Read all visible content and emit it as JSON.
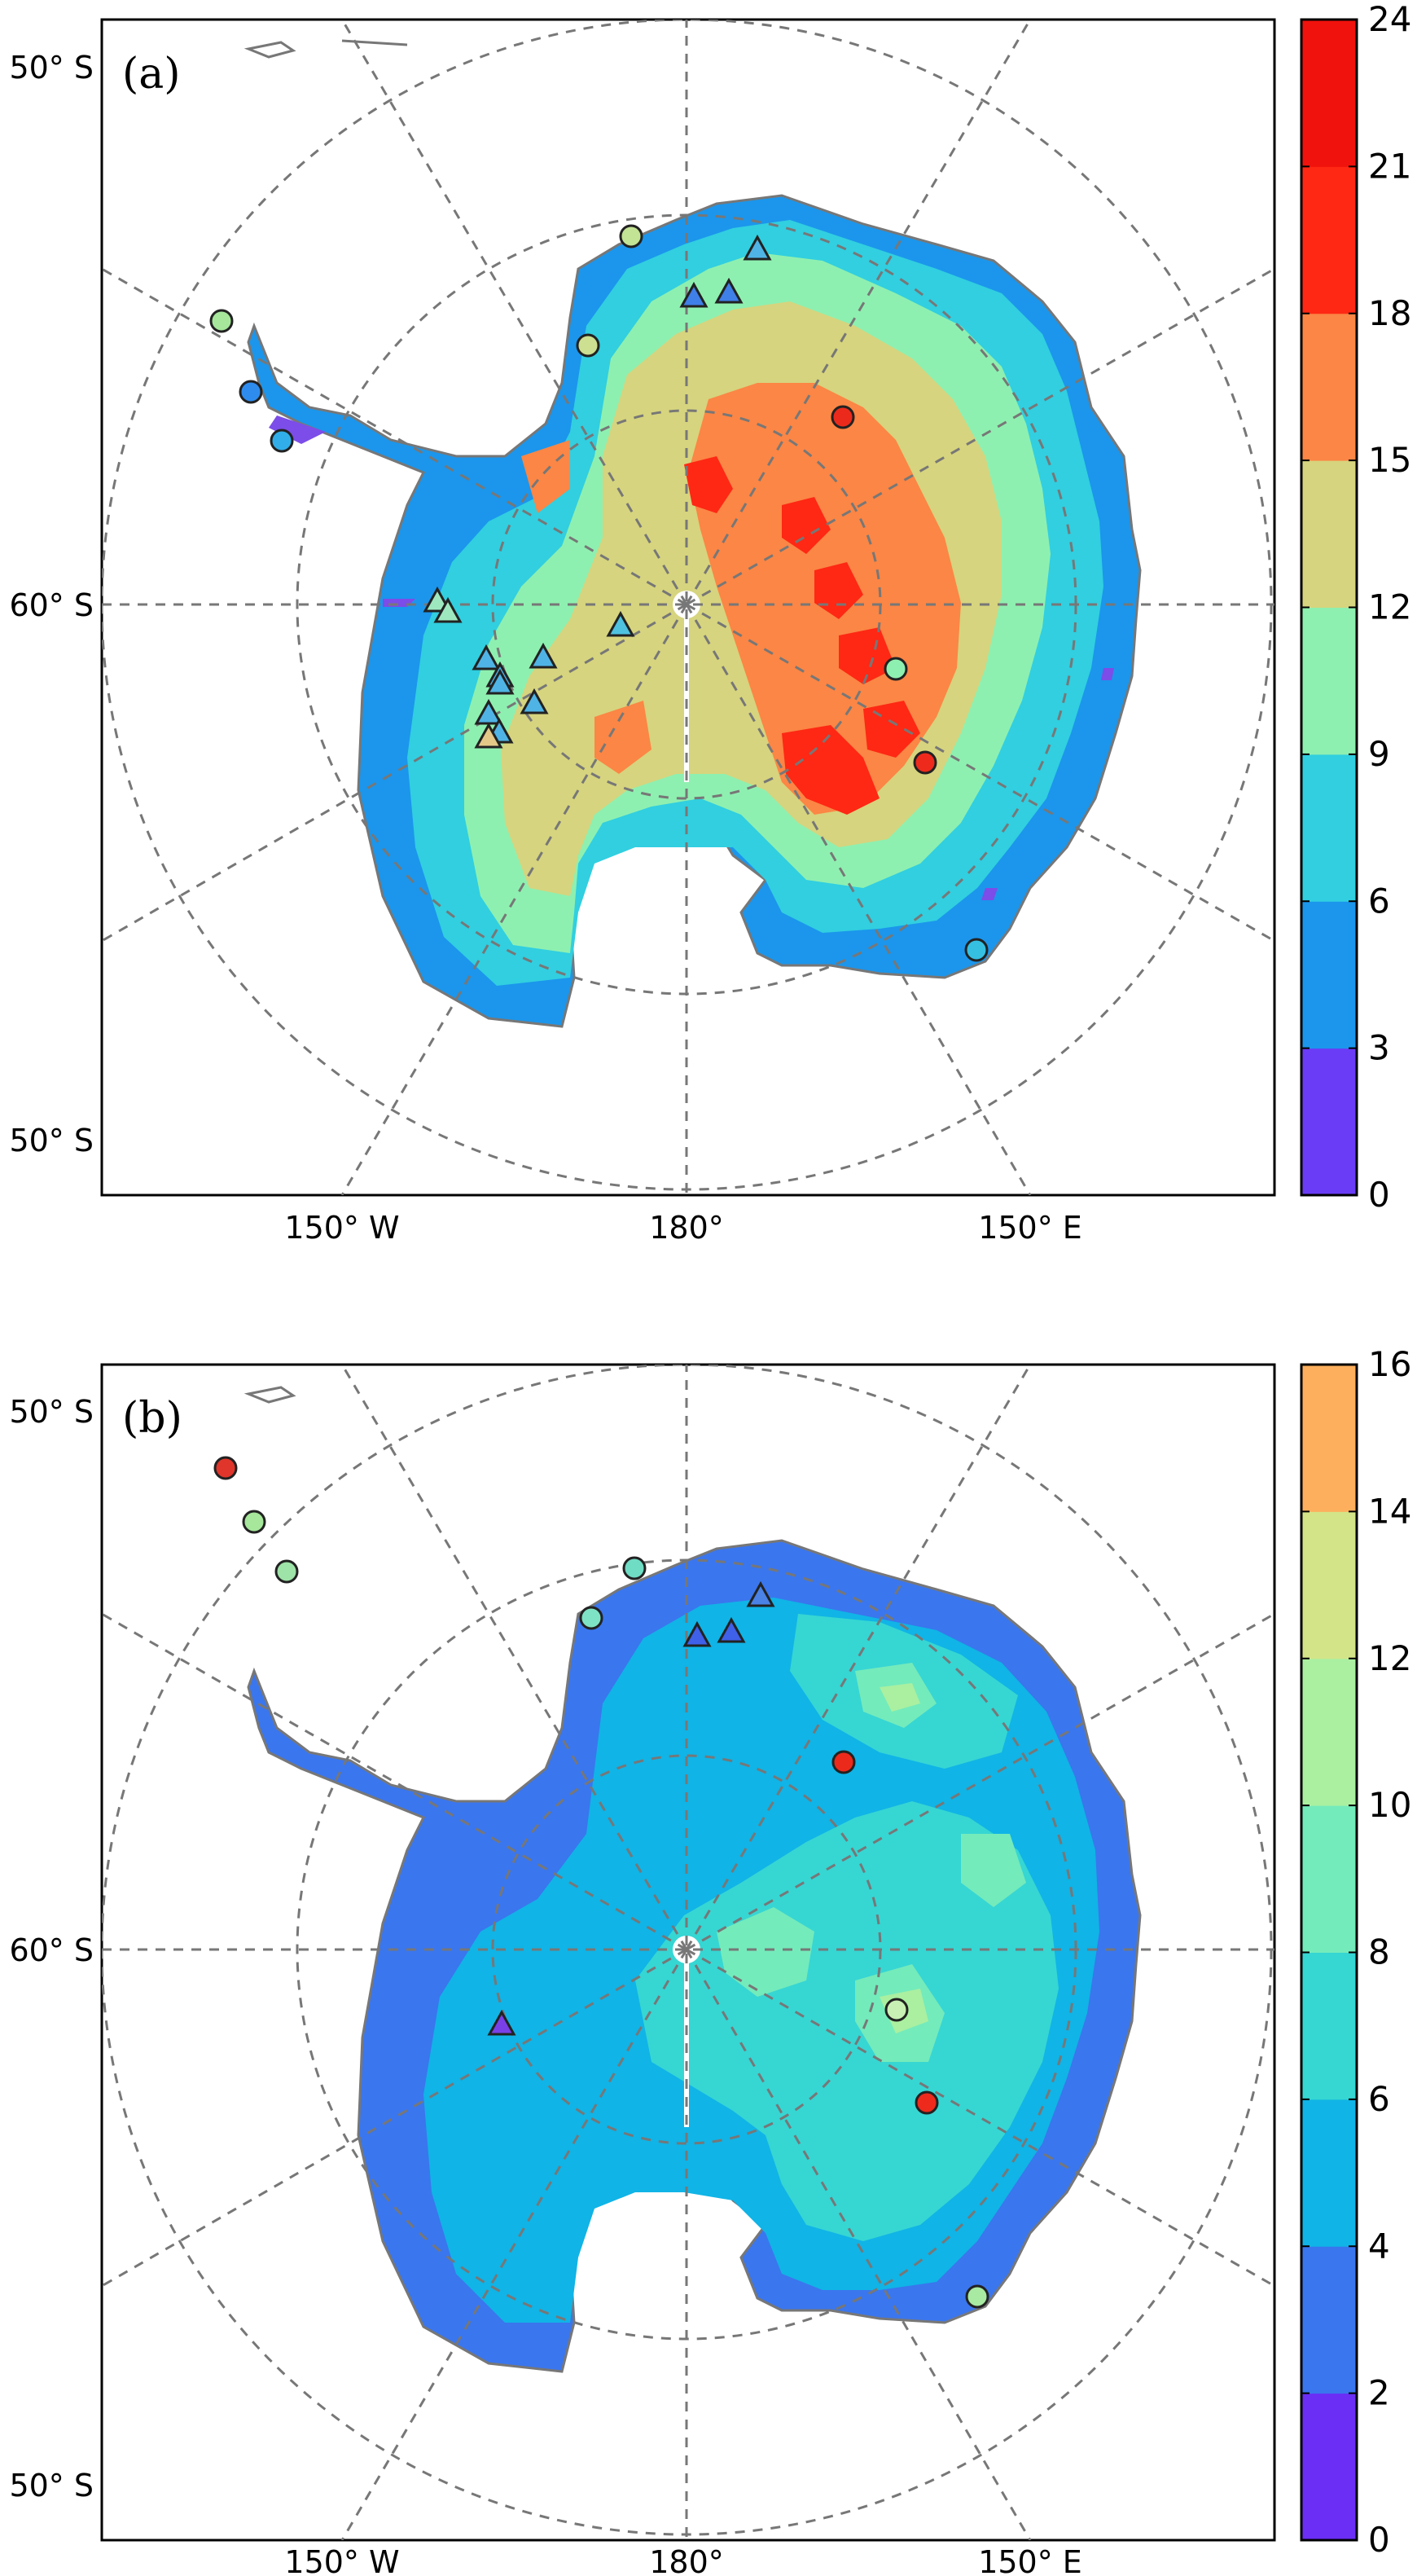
{
  "panels": [
    {
      "letter": "(a)",
      "lat_labels": [
        "50° S",
        "60° S",
        "50° S"
      ],
      "lon_labels": [
        "150° W",
        "180°",
        "150° E"
      ],
      "colorbar": {
        "ticks": [
          "0",
          "3",
          "6",
          "9",
          "12",
          "15",
          "18",
          "21",
          "24"
        ],
        "colors": [
          "#6a3cf5",
          "#1b96ec",
          "#31cfe0",
          "#8ef0b0",
          "#d6d47e",
          "#fb8645",
          "#fe2814",
          "#f0120c"
        ]
      },
      "markers": [
        {
          "shape": "circle",
          "color": "#a6e79b"
        },
        {
          "shape": "circle",
          "color": "#2f8cef"
        },
        {
          "shape": "circle",
          "color": "#31aee9"
        },
        {
          "shape": "circle",
          "color": "#cddf90"
        },
        {
          "shape": "circle",
          "color": "#c3e494"
        },
        {
          "shape": "circle",
          "color": "#ec2a1c"
        },
        {
          "shape": "circle",
          "color": "#8ef0b0"
        },
        {
          "shape": "circle",
          "color": "#ee2a1c"
        },
        {
          "shape": "circle",
          "color": "#35c0e2"
        },
        {
          "shape": "triangle",
          "color": "#3f7fe8"
        },
        {
          "shape": "triangle",
          "color": "#3f7fe8"
        },
        {
          "shape": "triangle",
          "color": "#4fb4e5"
        },
        {
          "shape": "triangle",
          "color": "#9ee8c0"
        },
        {
          "shape": "triangle",
          "color": "#9ee8c0"
        },
        {
          "shape": "triangle",
          "color": "#4fc2e0"
        },
        {
          "shape": "triangle",
          "color": "#4fb4e5"
        },
        {
          "shape": "triangle",
          "color": "#4fb4e5"
        },
        {
          "shape": "triangle",
          "color": "#4fb4e5"
        },
        {
          "shape": "triangle",
          "color": "#4fb4e5"
        },
        {
          "shape": "triangle",
          "color": "#4fb4e5"
        },
        {
          "shape": "triangle",
          "color": "#4fb4e5"
        },
        {
          "shape": "triangle",
          "color": "#4fb4e5"
        },
        {
          "shape": "triangle",
          "color": "#e3c887"
        }
      ]
    },
    {
      "letter": "(b)",
      "lat_labels": [
        "50° S",
        "60° S",
        "50° S"
      ],
      "lon_labels": [
        "150° W",
        "180°",
        "150° E"
      ],
      "colorbar": {
        "ticks": [
          "0",
          "2",
          "4",
          "6",
          "8",
          "10",
          "12",
          "14",
          "16"
        ],
        "colors": [
          "#6a2ef5",
          "#3a76ee",
          "#10b4e6",
          "#36d6d3",
          "#74ebbb",
          "#aaf0a0",
          "#d3e488",
          "#fdaf5d"
        ]
      },
      "markers": [
        {
          "shape": "circle",
          "color": "#e0352a"
        },
        {
          "shape": "circle",
          "color": "#a6e79b"
        },
        {
          "shape": "circle",
          "color": "#9ee3a8"
        },
        {
          "shape": "circle",
          "color": "#7ee3c4"
        },
        {
          "shape": "circle",
          "color": "#6fdcc4"
        },
        {
          "shape": "circle",
          "color": "#ec2a1c"
        },
        {
          "shape": "circle",
          "color": "#c9f0b4"
        },
        {
          "shape": "circle",
          "color": "#ee2a1c"
        },
        {
          "shape": "circle",
          "color": "#a8eaa2"
        },
        {
          "shape": "triangle",
          "color": "#3f60e8"
        },
        {
          "shape": "triangle",
          "color": "#3f60e8"
        },
        {
          "shape": "triangle",
          "color": "#4a82e6"
        },
        {
          "shape": "triangle",
          "color": "#7a40e8"
        }
      ]
    }
  ]
}
